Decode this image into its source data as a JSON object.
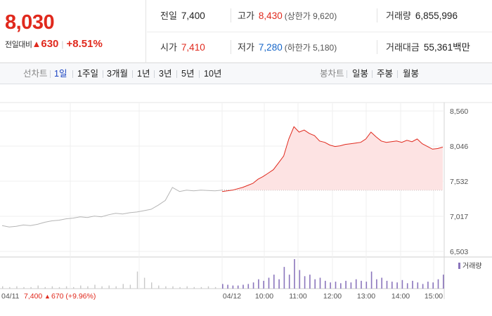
{
  "quote": {
    "price": "8,030",
    "change_label": "전일대비",
    "change_arrow": "▲",
    "change_amount": "630",
    "change_percent": "+8.51%"
  },
  "stats": {
    "prev_close": {
      "label": "전일",
      "value": "7,400"
    },
    "open": {
      "label": "시가",
      "value": "7,410"
    },
    "high": {
      "label": "고가",
      "value": "8,430",
      "limit_text": "(상한가 9,620)"
    },
    "low": {
      "label": "저가",
      "value": "7,280",
      "limit_text": "(하한가 5,180)"
    },
    "volume": {
      "label": "거래량",
      "value": "6,855,996"
    },
    "amount": {
      "label": "거래대금",
      "value": "55,361",
      "unit": "백만"
    }
  },
  "period_bar": {
    "line_chart_label": "선차트",
    "periods": [
      "1일",
      "1주일",
      "3개월",
      "1년",
      "3년",
      "5년",
      "10년"
    ],
    "selected_period": "1일",
    "candle_chart_label": "봉차트",
    "candle_periods": [
      "일봉",
      "주봉",
      "월봉"
    ]
  },
  "colors": {
    "up": "#e0291d",
    "down": "#1565c8",
    "selected": "#1a43c2",
    "prev_day_line": "#b5b5b5",
    "today_line": "#e0291d",
    "today_fill": "#fde3e3",
    "volume_bar": "#8a75bc"
  },
  "chart_data": {
    "type": "line",
    "yticks": [
      "8,560",
      "8,046",
      "7,532",
      "7,017",
      "6,503"
    ],
    "ylim": [
      6503,
      8560
    ],
    "baseline": 7400,
    "volume_legend": "거래량",
    "xticks_today": [
      "04/12",
      "10:00",
      "11:00",
      "12:00",
      "13:00",
      "14:00",
      "15:00"
    ],
    "prev_day": {
      "date": "04/11",
      "close_text": "7,400",
      "change_arrow": "▲",
      "change_text": "670 (+9.96%)",
      "series": [
        6880,
        6860,
        6870,
        6890,
        6880,
        6900,
        6930,
        6950,
        6960,
        6980,
        6990,
        7010,
        7000,
        7020,
        7010,
        7040,
        7060,
        7050,
        7070,
        7080,
        7100,
        7120,
        7180,
        7250,
        7440,
        7380,
        7400,
        7390,
        7400,
        7395,
        7390,
        7400
      ]
    },
    "today": {
      "series": [
        7380,
        7390,
        7400,
        7420,
        7440,
        7470,
        7500,
        7560,
        7600,
        7650,
        7700,
        7800,
        7900,
        8150,
        8330,
        8250,
        8280,
        8230,
        8200,
        8120,
        8100,
        8060,
        8040,
        8050,
        8070,
        8080,
        8090,
        8100,
        8150,
        8250,
        8180,
        8120,
        8100,
        8110,
        8120,
        8100,
        8130,
        8110,
        8150,
        8080,
        8040,
        8000,
        8010,
        8030
      ]
    },
    "volume_prev": [
      3,
      2,
      3,
      2,
      2,
      4,
      2,
      3,
      2,
      3,
      2,
      4,
      3,
      5,
      3,
      4,
      3,
      6,
      5,
      22,
      14,
      8,
      4,
      3,
      3,
      2,
      3,
      2,
      2,
      3,
      2,
      2
    ],
    "volume_today": [
      6,
      5,
      4,
      4,
      5,
      6,
      8,
      12,
      10,
      14,
      18,
      12,
      28,
      18,
      38,
      24,
      16,
      18,
      12,
      14,
      10,
      8,
      9,
      7,
      10,
      8,
      12,
      10,
      9,
      22,
      12,
      14,
      10,
      9,
      8,
      11,
      7,
      10,
      8,
      6,
      9,
      8,
      12,
      18
    ]
  }
}
